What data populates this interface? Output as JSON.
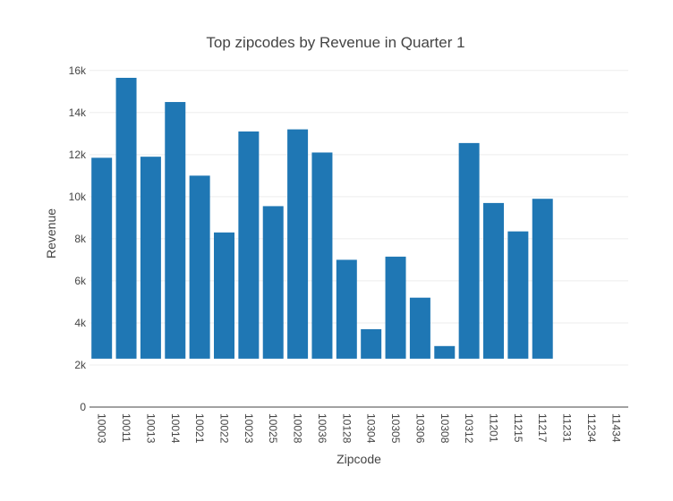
{
  "chart_data": {
    "type": "bar",
    "title": "Top zipcodes by Revenue in Quarter 1",
    "xlabel": "Zipcode",
    "ylabel": "Revenue",
    "categories": [
      "10003",
      "10011",
      "10013",
      "10014",
      "10021",
      "10022",
      "10023",
      "10025",
      "10028",
      "10036",
      "10128",
      "10304",
      "10305",
      "10306",
      "10308",
      "10312",
      "11201",
      "11215",
      "11217",
      "11231",
      "11234",
      "11434"
    ],
    "bar_base": 2300,
    "values": [
      11850,
      15650,
      11900,
      14500,
      11000,
      8300,
      13100,
      9550,
      13200,
      12100,
      7000,
      3700,
      7150,
      5200,
      2900,
      12550,
      9700,
      8350,
      9900,
      null,
      null,
      null
    ],
    "ylim": [
      0,
      16500
    ],
    "yticks": [
      0,
      2000,
      4000,
      6000,
      8000,
      10000,
      12000,
      14000,
      16000
    ],
    "ytick_labels": [
      "0",
      "2k",
      "4k",
      "6k",
      "8k",
      "10k",
      "12k",
      "14k",
      "16k"
    ],
    "bar_color": "#1f77b4",
    "grid": true,
    "legend": "none"
  }
}
